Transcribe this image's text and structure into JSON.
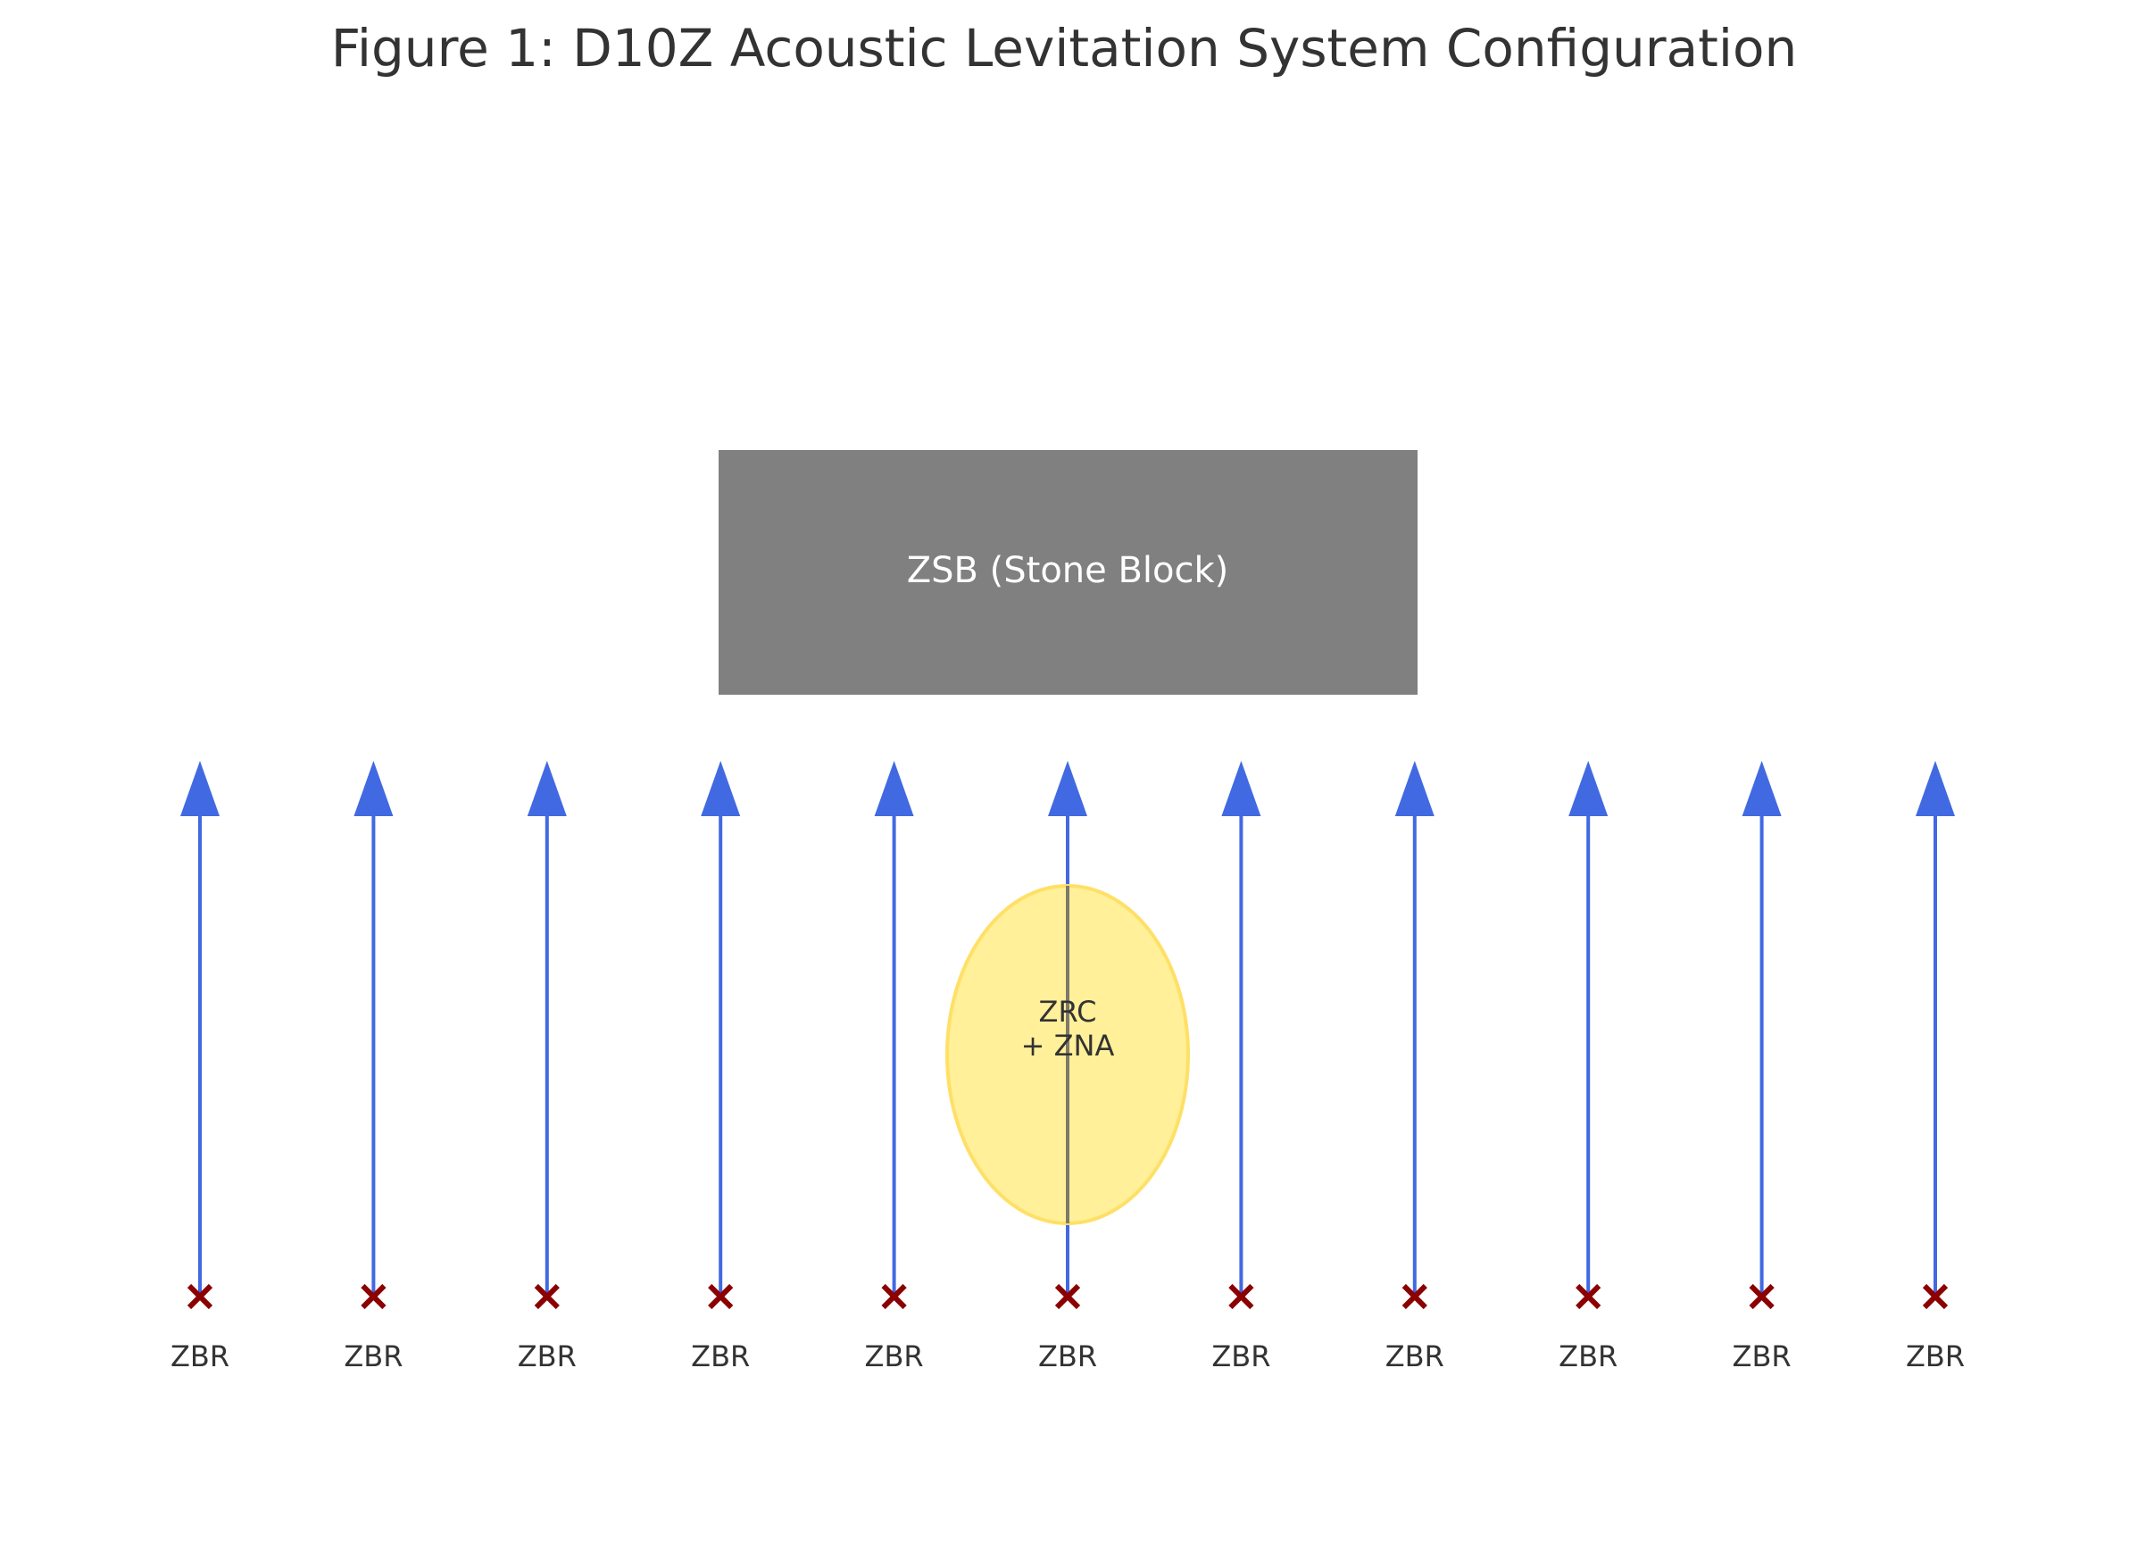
{
  "title": "Figure 1: D10Z Acoustic Levitation System Configuration",
  "stone_block": {
    "label": "ZSB (Stone Block)"
  },
  "core": {
    "line1": "ZRC",
    "line2": "+ ZNA"
  },
  "emitters": [
    {
      "label": "ZBR"
    },
    {
      "label": "ZBR"
    },
    {
      "label": "ZBR"
    },
    {
      "label": "ZBR"
    },
    {
      "label": "ZBR"
    },
    {
      "label": "ZBR"
    },
    {
      "label": "ZBR"
    },
    {
      "label": "ZBR"
    },
    {
      "label": "ZBR"
    },
    {
      "label": "ZBR"
    },
    {
      "label": "ZBR"
    }
  ],
  "colors": {
    "block": "#808080",
    "block_text": "#ffffff",
    "beam": "#4169e1",
    "core_fill": "#fff099",
    "core_stroke": "#ffe066",
    "emitter_marker": "#8b0000",
    "text": "#333333"
  }
}
